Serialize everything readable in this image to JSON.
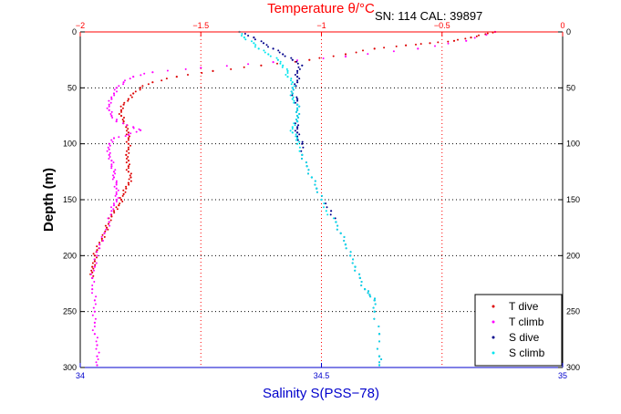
{
  "header": {
    "title": "Temperature θ/°C",
    "sn_cal": "SN: 114  CAL: 39897"
  },
  "chart_data": {
    "type": "scatter",
    "title": "",
    "ylabel": "Depth (m)",
    "xlabel_bottom": "Salinity S(PSS−78)",
    "xlabel_top": "Temperature θ/°C",
    "ylim": [
      300,
      0
    ],
    "xlim_salinity": [
      34,
      35
    ],
    "xlim_temperature": [
      -2,
      0
    ],
    "y_ticks": [
      "0",
      "50",
      "100",
      "150",
      "200",
      "250",
      "300"
    ],
    "y_tick_values": [
      0,
      50,
      100,
      150,
      200,
      250,
      300
    ],
    "x_bottom_ticks": [
      "34",
      "34.5",
      "35"
    ],
    "x_bottom_tick_values": [
      34,
      34.5,
      35
    ],
    "x_top_ticks": [
      "−2",
      "−1.5",
      "−1",
      "−0.5",
      "0"
    ],
    "x_top_tick_values": [
      -2,
      -1.5,
      -1,
      -0.5,
      0
    ],
    "grid": true,
    "legend_position": "bottom-right",
    "colors": {
      "t_axis": "#ff0000",
      "s_axis": "#0000cc",
      "grid": "#000000",
      "grid_temp": "#ff0000"
    },
    "series": [
      {
        "name": "T dive",
        "axis": "temperature",
        "color": "#dd0000",
        "marker": ".",
        "points": [
          [
            -0.28,
            0
          ],
          [
            -0.32,
            2
          ],
          [
            -0.38,
            5
          ],
          [
            -0.45,
            8
          ],
          [
            -0.55,
            10
          ],
          [
            -0.65,
            12
          ],
          [
            -0.78,
            15
          ],
          [
            -0.9,
            20
          ],
          [
            -1.05,
            25
          ],
          [
            -1.25,
            30
          ],
          [
            -1.45,
            35
          ],
          [
            -1.6,
            40
          ],
          [
            -1.7,
            45
          ],
          [
            -1.75,
            50
          ],
          [
            -1.78,
            55
          ],
          [
            -1.8,
            60
          ],
          [
            -1.82,
            65
          ],
          [
            -1.83,
            70
          ],
          [
            -1.83,
            75
          ],
          [
            -1.82,
            80
          ],
          [
            -1.81,
            85
          ],
          [
            -1.8,
            90
          ],
          [
            -1.8,
            95
          ],
          [
            -1.8,
            100
          ],
          [
            -1.8,
            105
          ],
          [
            -1.81,
            110
          ],
          [
            -1.8,
            115
          ],
          [
            -1.8,
            120
          ],
          [
            -1.8,
            125
          ],
          [
            -1.79,
            130
          ],
          [
            -1.8,
            135
          ],
          [
            -1.81,
            140
          ],
          [
            -1.82,
            145
          ],
          [
            -1.83,
            150
          ],
          [
            -1.84,
            155
          ],
          [
            -1.86,
            160
          ],
          [
            -1.87,
            165
          ],
          [
            -1.88,
            170
          ],
          [
            -1.89,
            175
          ],
          [
            -1.9,
            180
          ],
          [
            -1.91,
            185
          ],
          [
            -1.92,
            190
          ],
          [
            -1.93,
            195
          ],
          [
            -1.94,
            200
          ],
          [
            -1.94,
            205
          ],
          [
            -1.95,
            210
          ],
          [
            -1.95,
            215
          ],
          [
            -1.95,
            220
          ]
        ]
      },
      {
        "name": "T climb",
        "axis": "temperature",
        "color": "#ff00ff",
        "marker": ".",
        "points": [
          [
            -0.28,
            0
          ],
          [
            -0.4,
            8
          ],
          [
            -0.6,
            15
          ],
          [
            -0.9,
            22
          ],
          [
            -1.2,
            27
          ],
          [
            -1.5,
            32
          ],
          [
            -1.7,
            36
          ],
          [
            -1.78,
            40
          ],
          [
            -1.82,
            45
          ],
          [
            -1.85,
            50
          ],
          [
            -1.86,
            55
          ],
          [
            -1.87,
            60
          ],
          [
            -1.88,
            65
          ],
          [
            -1.88,
            70
          ],
          [
            -1.87,
            75
          ],
          [
            -1.85,
            80
          ],
          [
            -1.78,
            85
          ],
          [
            -1.75,
            88
          ],
          [
            -1.8,
            92
          ],
          [
            -1.86,
            95
          ],
          [
            -1.88,
            100
          ],
          [
            -1.88,
            105
          ],
          [
            -1.88,
            110
          ],
          [
            -1.87,
            115
          ],
          [
            -1.87,
            120
          ],
          [
            -1.86,
            125
          ],
          [
            -1.86,
            130
          ],
          [
            -1.85,
            135
          ],
          [
            -1.85,
            140
          ],
          [
            -1.85,
            145
          ],
          [
            -1.85,
            150
          ],
          [
            -1.86,
            155
          ],
          [
            -1.87,
            160
          ],
          [
            -1.88,
            170
          ],
          [
            -1.9,
            180
          ],
          [
            -1.92,
            190
          ],
          [
            -1.93,
            200
          ],
          [
            -1.94,
            210
          ],
          [
            -1.95,
            220
          ],
          [
            -1.95,
            230
          ],
          [
            -1.94,
            240
          ],
          [
            -1.94,
            250
          ],
          [
            -1.94,
            260
          ],
          [
            -1.94,
            270
          ],
          [
            -1.93,
            280
          ],
          [
            -1.93,
            290
          ],
          [
            -1.93,
            298
          ]
        ]
      },
      {
        "name": "S dive",
        "axis": "salinity",
        "color": "#00008b",
        "marker": ".",
        "points": [
          [
            34.33,
            0
          ],
          [
            34.36,
            5
          ],
          [
            34.38,
            10
          ],
          [
            34.4,
            15
          ],
          [
            34.42,
            20
          ],
          [
            34.44,
            25
          ],
          [
            34.46,
            30
          ],
          [
            34.45,
            35
          ],
          [
            34.45,
            40
          ],
          [
            34.45,
            45
          ],
          [
            34.44,
            50
          ],
          [
            34.44,
            55
          ],
          [
            34.45,
            60
          ],
          [
            34.45,
            65
          ],
          [
            34.45,
            70
          ],
          [
            34.45,
            75
          ],
          [
            34.45,
            80
          ],
          [
            34.45,
            85
          ],
          [
            34.45,
            90
          ],
          [
            34.45,
            95
          ],
          [
            34.46,
            100
          ],
          [
            34.46,
            110
          ],
          [
            34.47,
            120
          ],
          [
            34.48,
            130
          ],
          [
            34.49,
            140
          ],
          [
            34.5,
            150
          ],
          [
            34.52,
            160
          ],
          [
            34.53,
            170
          ],
          [
            34.54,
            180
          ],
          [
            34.55,
            190
          ],
          [
            34.56,
            200
          ],
          [
            34.57,
            210
          ],
          [
            34.58,
            220
          ],
          [
            34.59,
            230
          ],
          [
            34.6,
            235
          ],
          [
            34.61,
            240
          ],
          [
            34.61,
            250
          ],
          [
            34.62,
            270
          ],
          [
            34.62,
            290
          ],
          [
            34.62,
            298
          ]
        ]
      },
      {
        "name": "S climb",
        "axis": "salinity",
        "color": "#00e5ee",
        "marker": ".",
        "points": [
          [
            34.33,
            0
          ],
          [
            34.34,
            5
          ],
          [
            34.36,
            10
          ],
          [
            34.37,
            15
          ],
          [
            34.39,
            20
          ],
          [
            34.41,
            25
          ],
          [
            34.42,
            30
          ],
          [
            34.43,
            35
          ],
          [
            34.43,
            40
          ],
          [
            34.44,
            45
          ],
          [
            34.44,
            50
          ],
          [
            34.44,
            55
          ],
          [
            34.44,
            60
          ],
          [
            34.45,
            65
          ],
          [
            34.45,
            70
          ],
          [
            34.45,
            75
          ],
          [
            34.45,
            80
          ],
          [
            34.44,
            85
          ],
          [
            34.44,
            90
          ],
          [
            34.45,
            95
          ],
          [
            34.45,
            100
          ],
          [
            34.46,
            110
          ],
          [
            34.47,
            120
          ],
          [
            34.48,
            130
          ],
          [
            34.49,
            140
          ],
          [
            34.5,
            150
          ],
          [
            34.51,
            160
          ],
          [
            34.53,
            170
          ],
          [
            34.54,
            180
          ],
          [
            34.55,
            190
          ],
          [
            34.56,
            200
          ],
          [
            34.57,
            210
          ],
          [
            34.58,
            220
          ],
          [
            34.59,
            230
          ],
          [
            34.6,
            235
          ],
          [
            34.61,
            240
          ],
          [
            34.61,
            250
          ],
          [
            34.62,
            270
          ],
          [
            34.62,
            290
          ],
          [
            34.62,
            298
          ]
        ]
      }
    ]
  }
}
